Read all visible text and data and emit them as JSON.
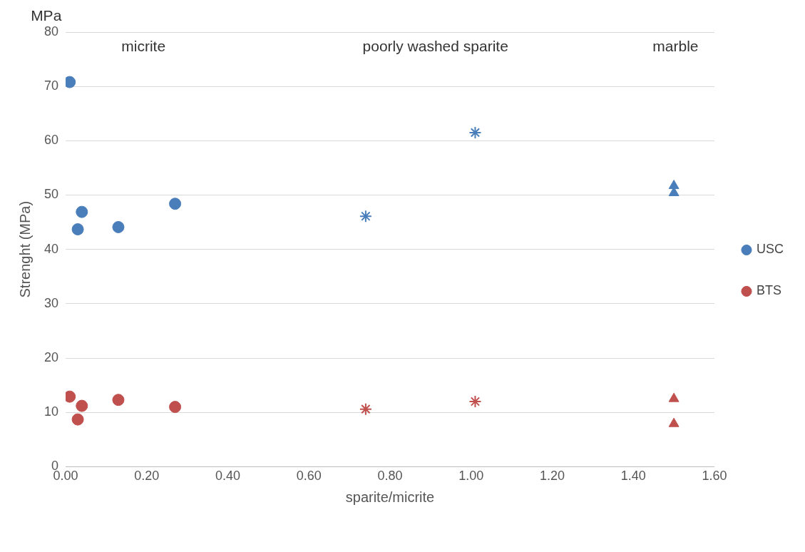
{
  "chart_data": {
    "type": "scatter",
    "xlabel": "sparite/micrite",
    "ylabel": "Strenght (MPa)",
    "annotations": [
      "MPa",
      "micrite",
      "poorly washed sparite",
      "marble"
    ],
    "xlim": [
      0,
      1.6
    ],
    "xticks": [
      {
        "value": 0,
        "label": "0.00"
      },
      {
        "value": 0.2,
        "label": "0.20"
      },
      {
        "value": 0.4,
        "label": "0.40"
      },
      {
        "value": 0.6,
        "label": "0.60"
      },
      {
        "value": 0.8,
        "label": "0.80"
      },
      {
        "value": 1.0,
        "label": "1.00"
      },
      {
        "value": 1.2,
        "label": "1.20"
      },
      {
        "value": 1.4,
        "label": "1.40"
      },
      {
        "value": 1.6,
        "label": "1.60"
      }
    ],
    "ylim": [
      0,
      80
    ],
    "yticks": [
      0,
      10,
      20,
      30,
      40,
      50,
      60,
      70,
      80
    ],
    "grid": "y",
    "legend": "right",
    "series": [
      {
        "name": "USC",
        "color": "#4a7ebb",
        "marker": "circle",
        "x": [
          0.01,
          0.03,
          0.04,
          0.13,
          0.27
        ],
        "values": [
          70.8,
          43.7,
          46.9,
          44.1,
          48.4
        ]
      },
      {
        "name": "BTS",
        "color": "#c0504d",
        "marker": "circle",
        "x": [
          0.01,
          0.03,
          0.04,
          0.13,
          0.27
        ],
        "values": [
          12.9,
          8.7,
          11.2,
          12.3,
          11.0
        ]
      },
      {
        "color": "#4a7ebb",
        "marker": "cross",
        "x": [
          0.74,
          1.01
        ],
        "values": [
          46.1,
          61.5
        ]
      },
      {
        "color": "#c0504d",
        "marker": "cross",
        "x": [
          0.74,
          1.01
        ],
        "values": [
          10.6,
          12.0
        ]
      },
      {
        "color": "#4a7ebb",
        "marker": "triangle",
        "x": [
          1.5,
          1.5
        ],
        "values": [
          51.7,
          50.4
        ]
      },
      {
        "color": "#c0504d",
        "marker": "triangle",
        "x": [
          1.5,
          1.5
        ],
        "values": [
          12.5,
          7.9
        ]
      }
    ]
  }
}
